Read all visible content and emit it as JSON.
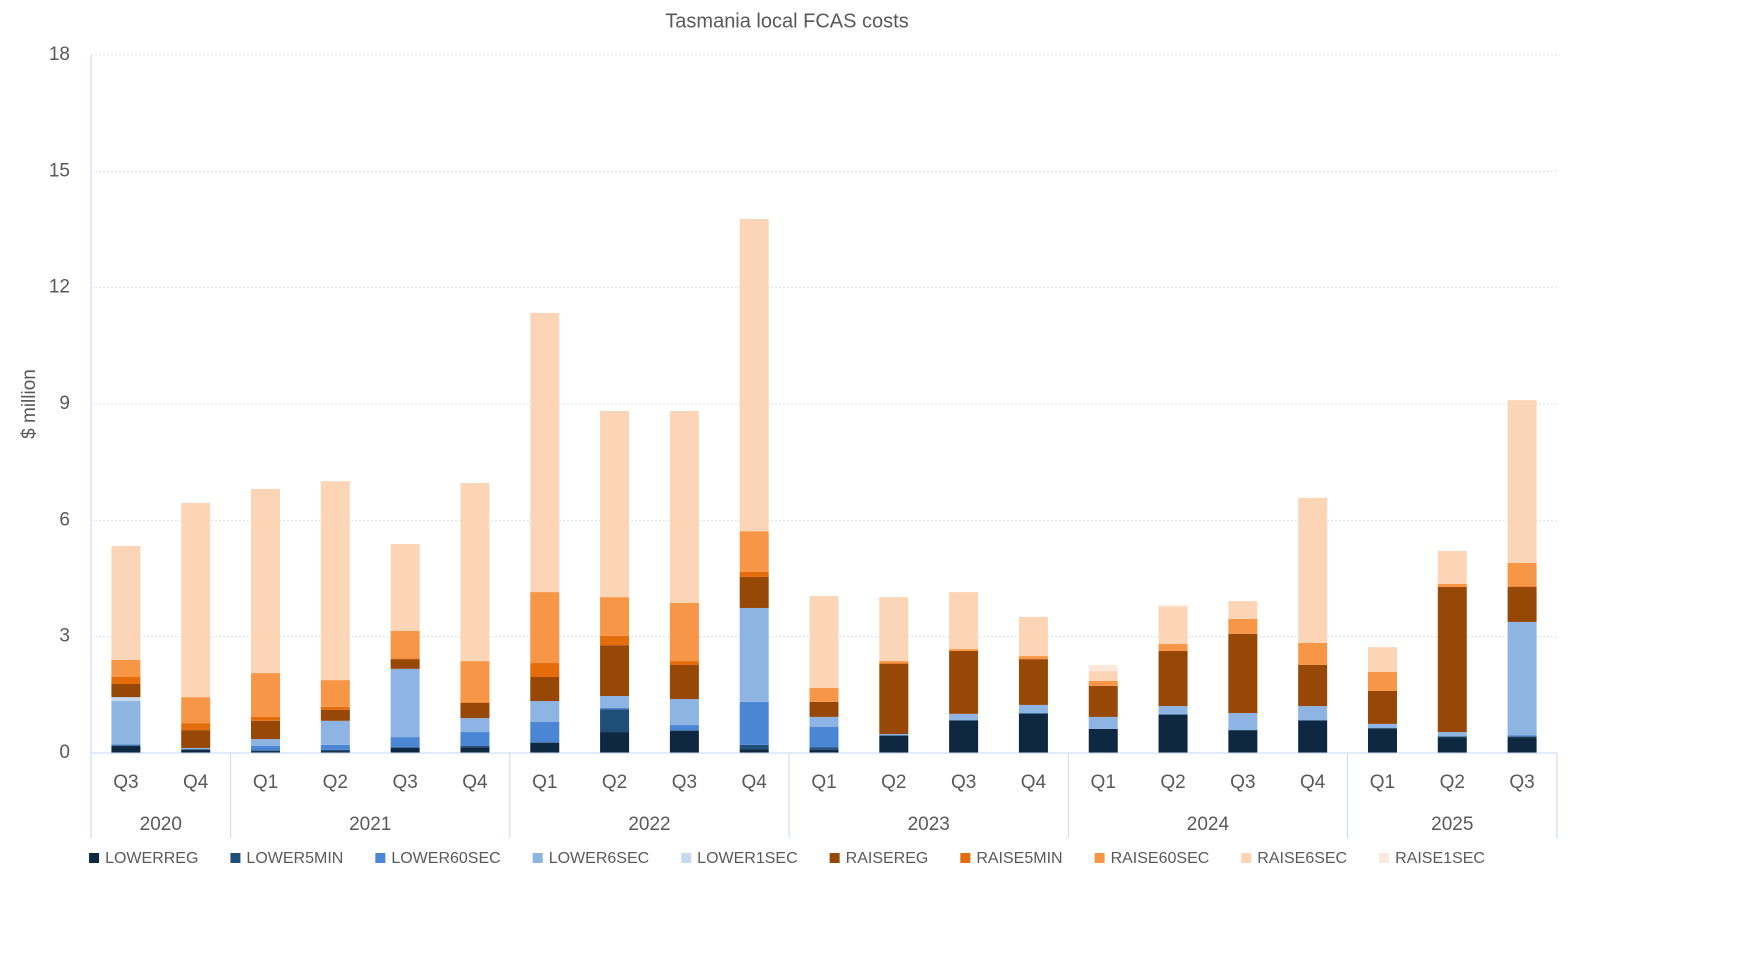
{
  "chart_data": {
    "type": "stacked-bar",
    "title": "Tasmania local FCAS costs",
    "y_label": "$ million",
    "groups": [
      {
        "name": "2020",
        "categories": [
          "Q3",
          "Q4"
        ]
      },
      {
        "name": "2021",
        "categories": [
          "Q1",
          "Q2",
          "Q3",
          "Q4"
        ]
      },
      {
        "name": "2022",
        "categories": [
          "Q1",
          "Q2",
          "Q3",
          "Q4"
        ]
      },
      {
        "name": "2023",
        "categories": [
          "Q1",
          "Q2",
          "Q3",
          "Q4"
        ]
      },
      {
        "name": "2024",
        "categories": [
          "Q1",
          "Q2",
          "Q3",
          "Q4"
        ]
      },
      {
        "name": "2025",
        "categories": [
          "Q1",
          "Q2",
          "Q3"
        ]
      }
    ],
    "series": [
      {
        "name": "LOWERREG",
        "color": "#0e2841",
        "values": [
          0.18,
          0.08,
          0.05,
          0.05,
          0.13,
          0.15,
          0.26,
          0.54,
          0.57,
          0.1,
          0.08,
          0.44,
          0.83,
          1.01,
          0.62,
          0.98,
          0.59,
          0.83,
          0.64,
          0.41,
          0.41
        ]
      },
      {
        "name": "LOWER5MIN",
        "color": "#1f4e79",
        "values": [
          0.02,
          0.02,
          0.02,
          0.03,
          0.02,
          0.03,
          0.02,
          0.59,
          0.02,
          0.11,
          0.07,
          0.02,
          0.02,
          0.02,
          0,
          0.02,
          0,
          0.02,
          0,
          0.02,
          0.02
        ]
      },
      {
        "name": "LOWER60SEC",
        "color": "#4a86d4",
        "values": [
          0.02,
          0,
          0.11,
          0.13,
          0.26,
          0.36,
          0.52,
          0.03,
          0.13,
          1.11,
          0.52,
          0,
          0,
          0,
          0,
          0,
          0,
          0,
          0,
          0,
          0.03
        ]
      },
      {
        "name": "LOWER6SEC",
        "color": "#8eb4e3",
        "values": [
          1.12,
          0.03,
          0.18,
          0.62,
          1.76,
          0.36,
          0.54,
          0.31,
          0.67,
          2.42,
          0.26,
          0.03,
          0.16,
          0.21,
          0.31,
          0.21,
          0.44,
          0.36,
          0.11,
          0.11,
          2.92
        ]
      },
      {
        "name": "LOWER1SEC",
        "color": "#c5d9f1",
        "values": [
          0.1,
          0,
          0,
          0,
          0,
          0,
          0,
          0,
          0,
          0,
          0,
          0,
          0,
          0,
          0,
          0,
          0,
          0,
          0,
          0,
          0
        ]
      },
      {
        "name": "RAISEREG",
        "color": "#974706",
        "values": [
          0.34,
          0.46,
          0.47,
          0.28,
          0.25,
          0.39,
          0.62,
          1.31,
          0.88,
          0.8,
          0.39,
          1.81,
          1.62,
          1.18,
          0.8,
          1.42,
          2.04,
          1.06,
          0.85,
          3.74,
          0.9
        ]
      },
      {
        "name": "RAISE5MIN",
        "color": "#e46c0a",
        "values": [
          0.18,
          0.18,
          0.1,
          0.08,
          0.02,
          0.02,
          0.36,
          0.24,
          0.1,
          0.13,
          0,
          0.02,
          0,
          0,
          0,
          0,
          0,
          0,
          0,
          0,
          0.02
        ]
      },
      {
        "name": "RAISE60SEC",
        "color": "#f79646",
        "values": [
          0.44,
          0.67,
          1.13,
          0.69,
          0.71,
          1.06,
          1.83,
          1.0,
          1.5,
          1.05,
          0.36,
          0.05,
          0.05,
          0.08,
          0.13,
          0.18,
          0.39,
          0.57,
          0.49,
          0.08,
          0.6
        ]
      },
      {
        "name": "RAISE6SEC",
        "color": "#fbd5b5",
        "values": [
          2.94,
          5.01,
          4.75,
          5.13,
          2.24,
          4.59,
          7.2,
          4.8,
          4.95,
          8.05,
          2.37,
          1.65,
          1.47,
          1.01,
          0.25,
          0.96,
          0.46,
          3.74,
          0.64,
          0.85,
          4.2
        ]
      },
      {
        "name": "RAISE1SEC",
        "color": "#fde9d9",
        "values": [
          0,
          0,
          0,
          0,
          0,
          0,
          0,
          0,
          0,
          0,
          0,
          0,
          0,
          0,
          0.16,
          0.05,
          0,
          0,
          0,
          0,
          0
        ]
      }
    ],
    "ylim": [
      0,
      18
    ],
    "yticks": [
      0,
      3,
      6,
      9,
      12,
      15,
      18
    ],
    "grid": true
  }
}
